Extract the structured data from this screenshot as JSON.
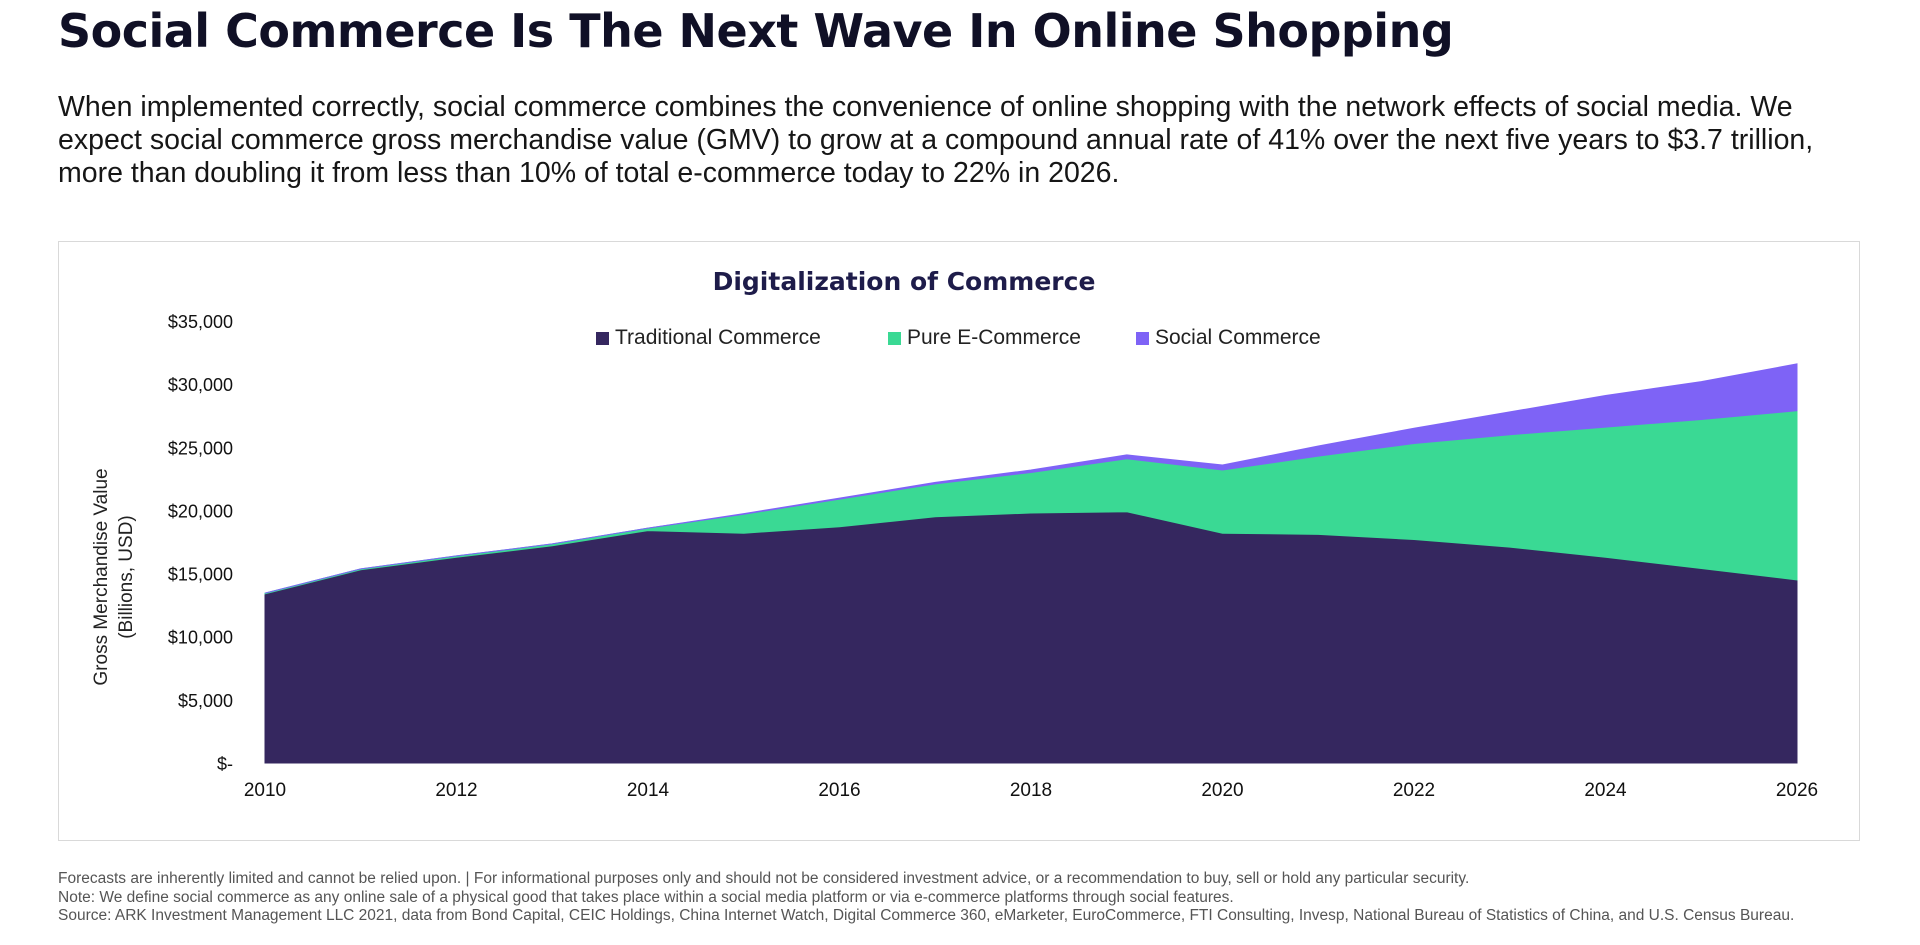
{
  "page": {
    "title": "Social Commerce Is The Next Wave In Online Shopping",
    "intro": "When implemented correctly, social commerce combines the convenience of online shopping with the network effects of social media. We expect social commerce gross merchandise value (GMV) to grow at a compound annual rate of 41% over the next five years to $3.7 trillion, more than doubling it from less than 10% of total e-commerce today to 22% in 2026.",
    "footnotes": [
      "Forecasts are inherently limited and cannot be relied upon. | For informational purposes only and should not be considered investment advice, or a recommendation to buy, sell or hold any particular security.",
      "Note: We define social commerce as any online sale of a physical good that takes place within a social media platform or via e-commerce platforms through social features.",
      "Source: ARK Investment Management LLC  2021, data from Bond Capital, CEIC Holdings, China Internet Watch, Digital Commerce 360, eMarketer, EuroCommerce, FTI Consulting, Invesp, National Bureau of Statistics of China, and U.S. Census Bureau."
    ]
  },
  "chart_data": {
    "type": "area",
    "stacked": true,
    "title": "Digitalization of Commerce",
    "ylabel_lines": [
      "Gross Merchandise Value",
      "(Billions, USD)"
    ],
    "xlabel": "",
    "x": [
      2010,
      2011,
      2012,
      2013,
      2014,
      2015,
      2016,
      2017,
      2018,
      2019,
      2020,
      2021,
      2022,
      2023,
      2024,
      2025,
      2026
    ],
    "x_ticks": [
      2010,
      2012,
      2014,
      2016,
      2018,
      2020,
      2022,
      2024,
      2026
    ],
    "ylim": [
      0,
      35000
    ],
    "y_ticks": [
      0,
      5000,
      10000,
      15000,
      20000,
      25000,
      30000,
      35000
    ],
    "y_tick_labels": [
      "$-",
      "$5,000",
      "$10,000",
      "$15,000",
      "$20,000",
      "$25,000",
      "$30,000",
      "$35,000"
    ],
    "legend_position": "top-center",
    "grid": false,
    "series": [
      {
        "name": "Traditional Commerce",
        "color": "#35275f",
        "values": [
          13400,
          15300,
          16300,
          17200,
          18400,
          18200,
          18700,
          19500,
          19800,
          19900,
          18200,
          18100,
          17700,
          17100,
          16300,
          15400,
          14500
        ]
      },
      {
        "name": "Pure E-Commerce",
        "color": "#3ad994",
        "values": [
          50,
          70,
          100,
          150,
          200,
          1500,
          2200,
          2600,
          3200,
          4200,
          5000,
          6200,
          7600,
          8900,
          10300,
          11800,
          13400
        ]
      },
      {
        "name": "Social Commerce",
        "color": "#7e63f6",
        "values": [
          0,
          0,
          0,
          0,
          0,
          50,
          80,
          120,
          200,
          300,
          400,
          800,
          1200,
          1800,
          2500,
          3000,
          3700
        ]
      }
    ]
  }
}
